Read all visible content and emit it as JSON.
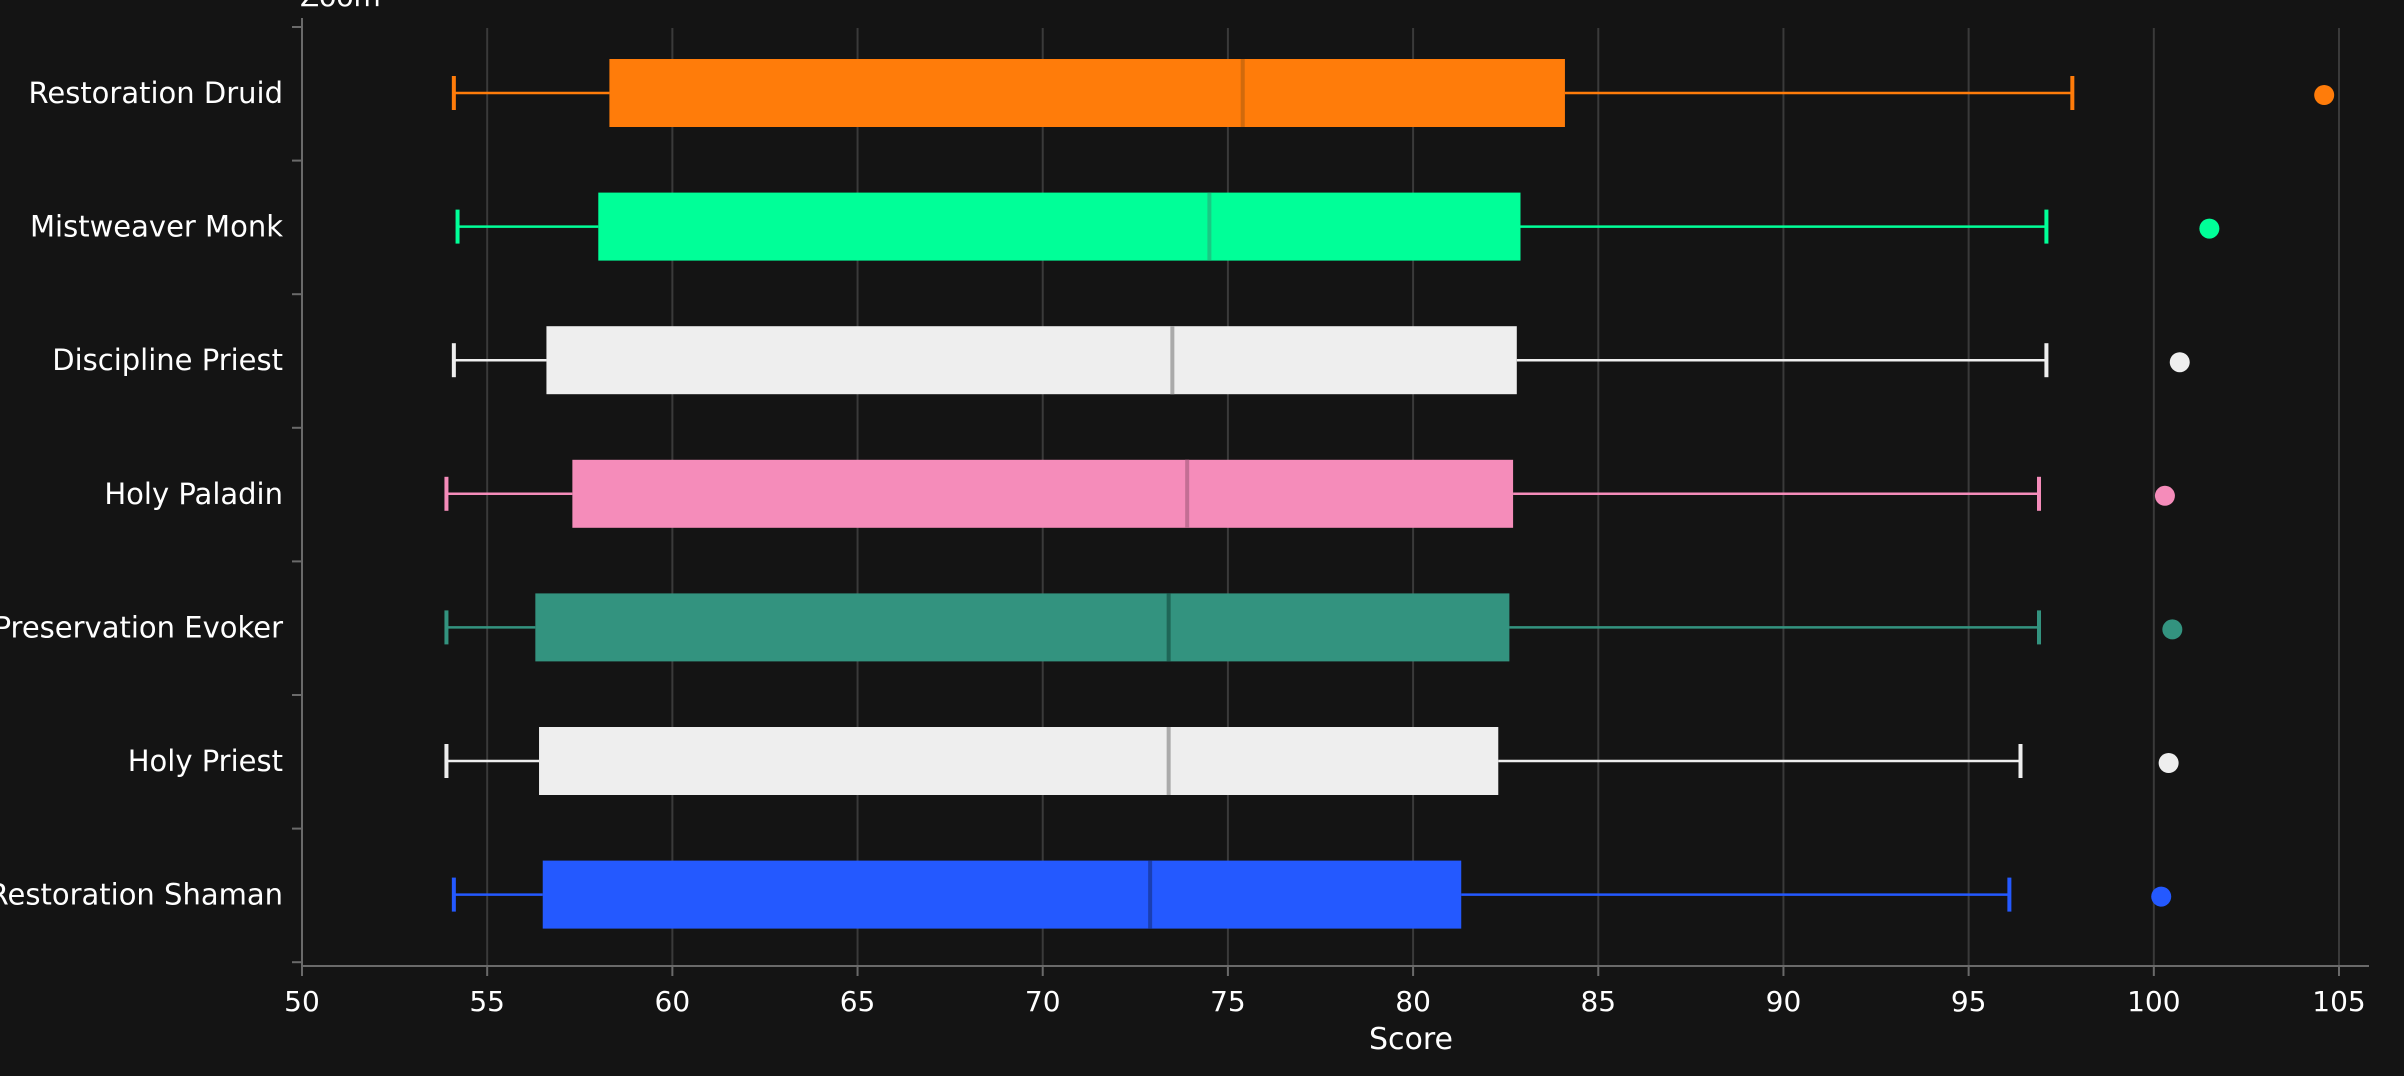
{
  "chart_data": {
    "type": "box",
    "xlabel": "Score",
    "xlim": [
      50,
      106
    ],
    "xticks": [
      50,
      55,
      60,
      65,
      70,
      75,
      80,
      85,
      90,
      95,
      100,
      105
    ],
    "grid": "vertical",
    "orientation": "horizontal",
    "top_label": "Zoom",
    "series": [
      {
        "name": "Restoration Druid",
        "min": 54.1,
        "q1": 58.3,
        "median": 75.4,
        "q3": 84.1,
        "max": 97.8,
        "outlier": 104.6,
        "color": "#FF7C0A",
        "median_color": "#D16A0C"
      },
      {
        "name": "Mistweaver Monk",
        "min": 54.2,
        "q1": 58.0,
        "median": 74.5,
        "q3": 82.9,
        "max": 97.1,
        "outlier": 101.5,
        "color": "#00FF98",
        "median_color": "#19C984"
      },
      {
        "name": "Discipline Priest",
        "min": 54.1,
        "q1": 56.6,
        "median": 73.5,
        "q3": 82.8,
        "max": 97.1,
        "outlier": 100.7,
        "color": "#EEEEEE",
        "median_color": "#AAAAAA"
      },
      {
        "name": "Holy Paladin",
        "min": 53.9,
        "q1": 57.3,
        "median": 73.9,
        "q3": 82.7,
        "max": 96.9,
        "outlier": 100.3,
        "color": "#F58CBA",
        "median_color": "#C36E94"
      },
      {
        "name": "Preservation Evoker",
        "min": 53.9,
        "q1": 56.3,
        "median": 73.4,
        "q3": 82.6,
        "max": 96.9,
        "outlier": 100.5,
        "color": "#33937F",
        "median_color": "#1F6657"
      },
      {
        "name": "Holy Priest",
        "min": 53.9,
        "q1": 56.4,
        "median": 73.4,
        "q3": 82.3,
        "max": 96.4,
        "outlier": 100.4,
        "color": "#EEEEEE",
        "median_color": "#AAAAAA"
      },
      {
        "name": "Restoration Shaman",
        "min": 54.1,
        "q1": 56.5,
        "median": 72.9,
        "q3": 81.3,
        "max": 96.1,
        "outlier": 100.2,
        "color": "#2459FF",
        "median_color": "#1A3FB3"
      }
    ]
  }
}
